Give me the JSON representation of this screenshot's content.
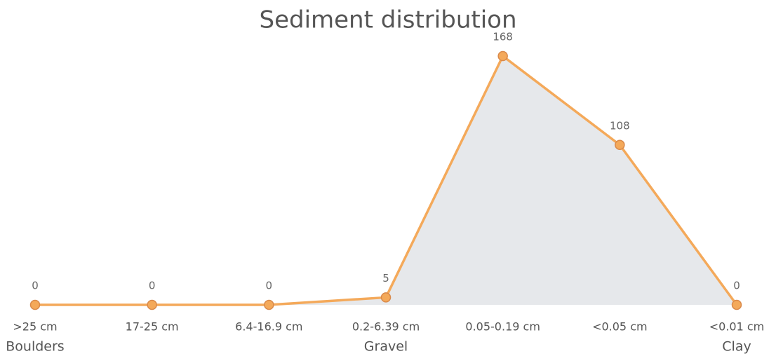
{
  "chart_data": {
    "type": "line",
    "title": "Sediment distribution",
    "categories": [
      ">25 cm",
      "17-25 cm",
      "6.4-16.9 cm",
      "0.2-6.39 cm",
      "0.05-0.19 cm",
      "<0.05 cm",
      "<0.01 cm"
    ],
    "group_labels": [
      "Boulders",
      null,
      null,
      "Gravel",
      null,
      null,
      "Clay"
    ],
    "values": [
      0,
      0,
      0,
      5,
      168,
      108,
      0
    ],
    "color": "#f4a95a",
    "fill": "#e6e8eb"
  }
}
